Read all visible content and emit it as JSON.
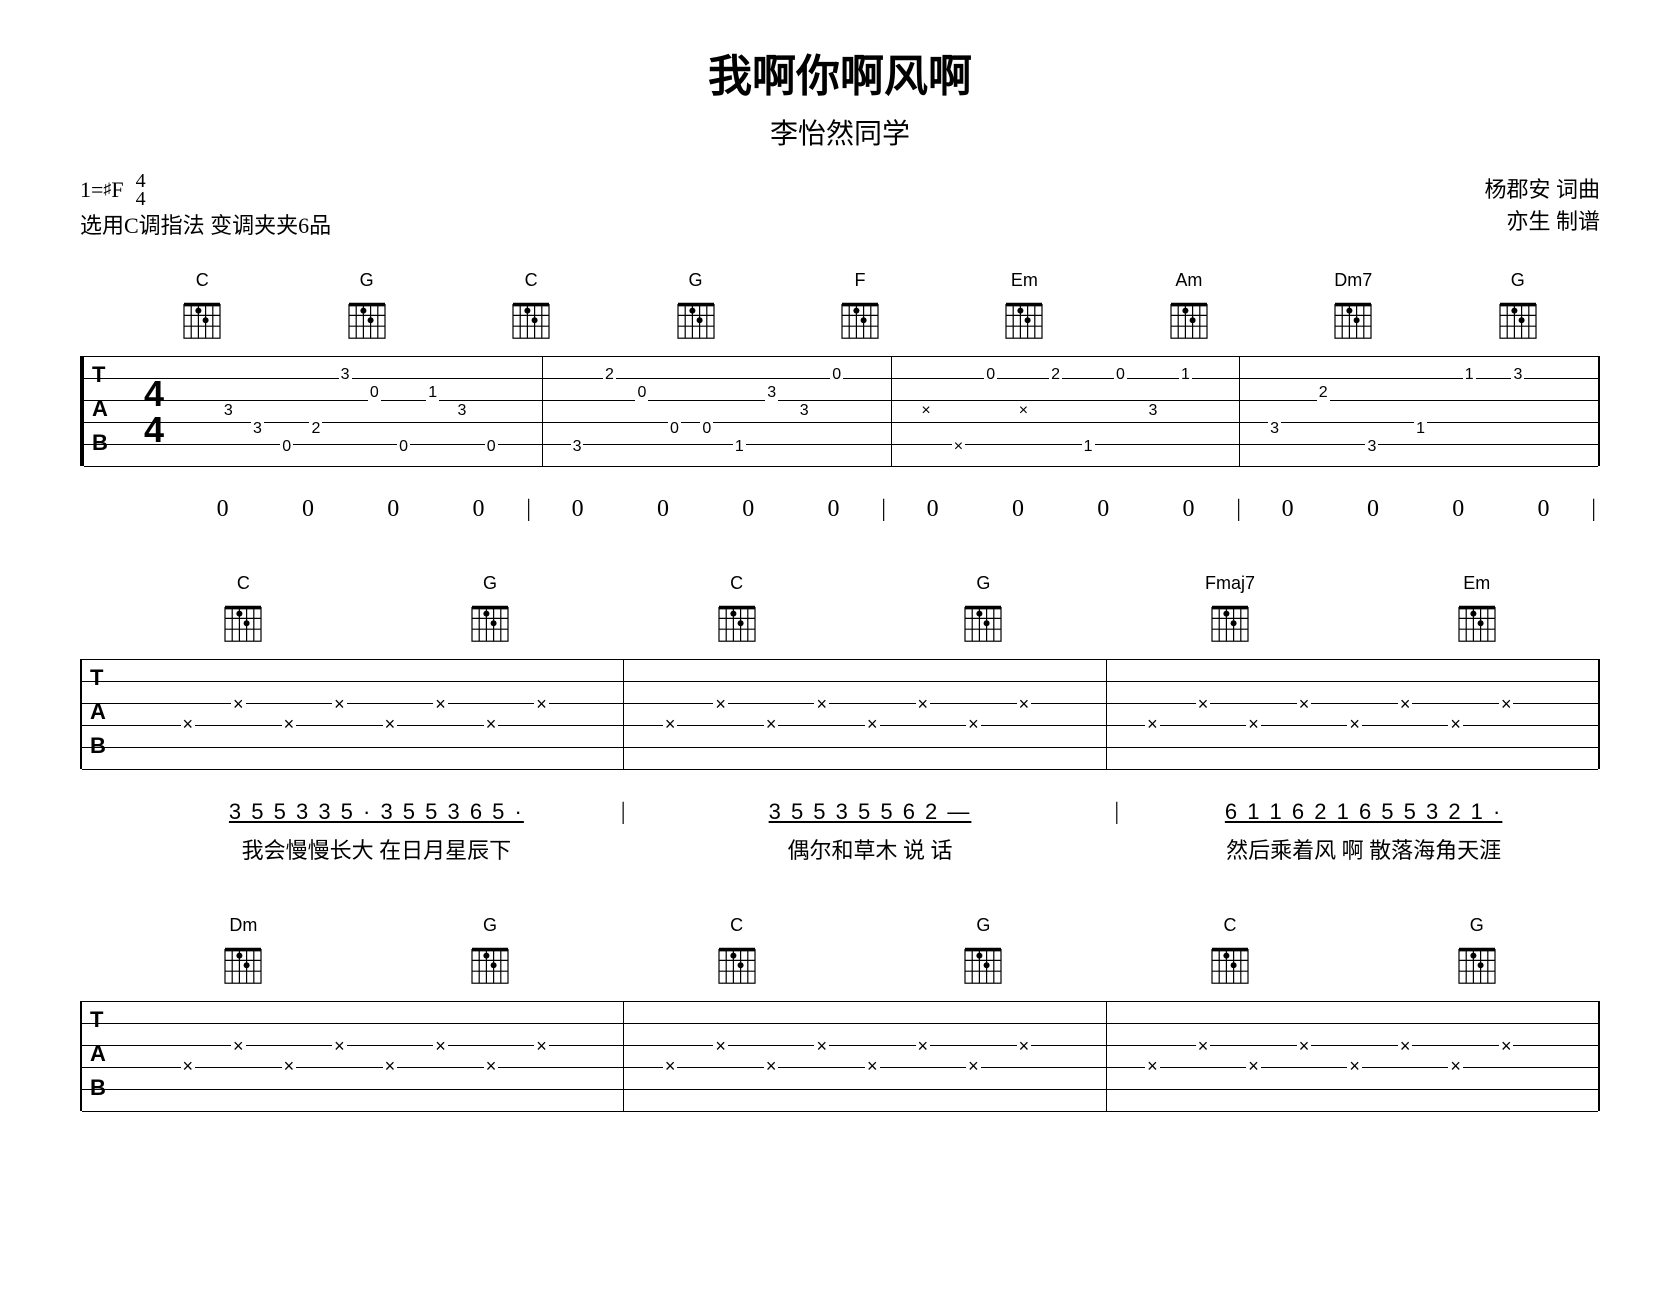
{
  "header": {
    "title": "我啊你啊风啊",
    "subtitle": "李怡然同学",
    "key": "1=",
    "key_note": "F",
    "time_top": "4",
    "time_bottom": "4",
    "tuning_note": "选用C调指法  变调夹夹6品",
    "credit1": "杨郡安  词曲",
    "credit2": "亦生  制谱"
  },
  "system1": {
    "chords": [
      "C",
      "G",
      "C",
      "G",
      "F",
      "Em",
      "Am",
      "Dm7",
      "G"
    ],
    "tab_label_T": "T",
    "tab_label_A": "A",
    "tab_label_B": "B",
    "time_top": "4",
    "time_bottom": "4",
    "measures": [
      {
        "notes": [
          "3",
          "3",
          "0",
          "2",
          "3",
          "0",
          "0",
          "1",
          "3",
          "0"
        ]
      },
      {
        "notes": [
          "3",
          "2",
          "0",
          "0",
          "0",
          "1",
          "3",
          "3",
          "0"
        ]
      },
      {
        "notes": [
          "×",
          "×",
          "0",
          "×",
          "2",
          "1",
          "0",
          "3",
          "1"
        ]
      },
      {
        "notes": [
          "3",
          "2",
          "3",
          "1",
          "1",
          "3"
        ]
      }
    ],
    "rhythm": [
      "0",
      "0",
      "0",
      "0",
      "|",
      "0",
      "0",
      "0",
      "0",
      "|",
      "0",
      "0",
      "0",
      "0",
      "|",
      "0",
      "0",
      "0",
      "0",
      "|"
    ]
  },
  "system2": {
    "chords": [
      "C",
      "G",
      "C",
      "G",
      "Fmaj7",
      "Em"
    ],
    "measures": [
      {
        "marks": [
          "×",
          "×",
          "×",
          "×",
          "×",
          "×",
          "×",
          "×"
        ]
      },
      {
        "marks": [
          "×",
          "×",
          "×",
          "×",
          "×",
          "×",
          "×",
          "×"
        ]
      },
      {
        "marks": [
          "×",
          "×",
          "×",
          "×",
          "×",
          "×",
          "×",
          "×"
        ]
      }
    ],
    "jianpu": [
      {
        "notes": "3 5 5 3 3 5 ·  3 5 5 3 6 5 ·",
        "lyrics": "我会慢慢长大  在日月星辰下"
      },
      {
        "notes": "3 5 5 3  5  5 6 2    —",
        "lyrics": "偶尔和草木 说  话"
      },
      {
        "notes": "6 1 1 6  2 1  6 5 5 3  2 1 ·",
        "lyrics": "然后乘着风 啊 散落海角天涯"
      }
    ]
  },
  "system3": {
    "chords": [
      "Dm",
      "G",
      "C",
      "G",
      "C",
      "G"
    ],
    "measures": [
      {
        "marks": [
          "×",
          "×",
          "×",
          "×",
          "×",
          "×",
          "×",
          "×"
        ]
      },
      {
        "marks": [
          "×",
          "×",
          "×",
          "×",
          "×",
          "×",
          "×",
          "×"
        ]
      },
      {
        "marks": [
          "×",
          "×",
          "×",
          "×",
          "×",
          "×",
          "×",
          "×"
        ]
      }
    ]
  },
  "colors": {
    "bg": "#ffffff",
    "fg": "#000000"
  }
}
